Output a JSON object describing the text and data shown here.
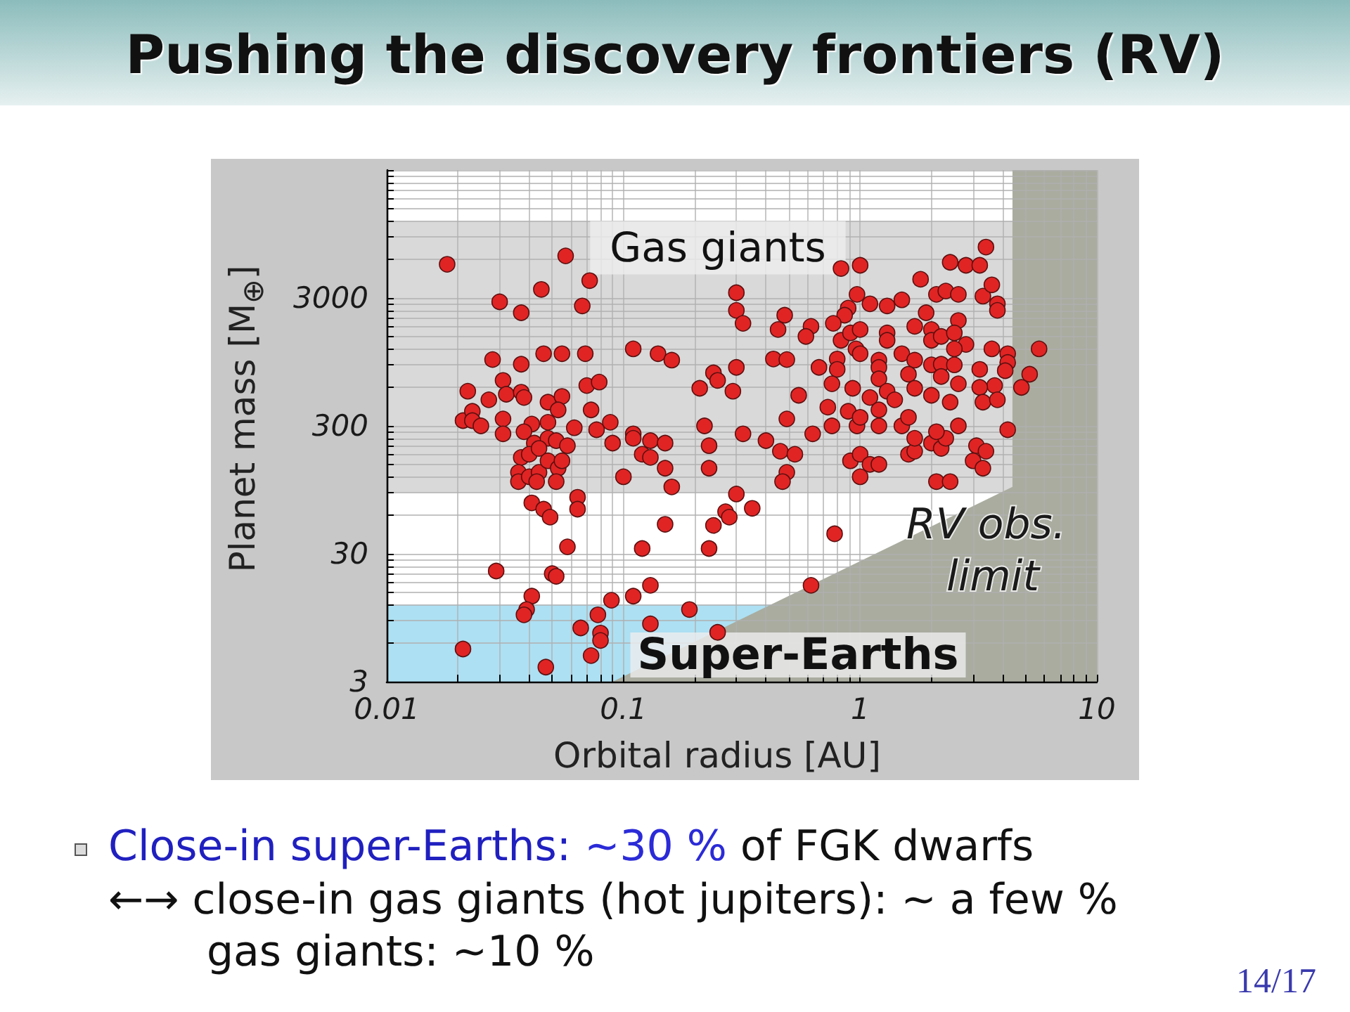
{
  "chart_data": {
    "type": "scatter",
    "title": "Pushing the discovery frontiers (RV)",
    "xlabel": "Orbital radius [AU]",
    "ylabel": "Planet mass [M$_{⊕}$]",
    "annotations": [
      "Close-in super-Earths:",
      "~30 %",
      "of FGK dwarfs",
      "←→ close-in gas giants (hot jupiters): ~ a few %",
      "gas giants: ~10 %",
      "14/17"
    ],
    "log": "xy",
    "grid": true,
    "marker": "circle",
    "xlim": [
      0.01,
      10
    ],
    "ylim": [
      3,
      30000
    ],
    "xticks": [
      0.01,
      {
        "value": 0.02,
        "label": null
      },
      {
        "value": 0.03,
        "label": null
      },
      {
        "value": 0.04,
        "label": null
      },
      {
        "value": 0.05,
        "label": null
      },
      {
        "value": 0.06,
        "label": null
      },
      {
        "value": 0.07,
        "label": null
      },
      {
        "value": 0.08,
        "label": null
      },
      {
        "value": 0.09,
        "label": null
      },
      0.1,
      {
        "value": 0.2,
        "label": null
      },
      {
        "value": 0.3,
        "label": null
      },
      {
        "value": 0.4,
        "label": null
      },
      {
        "value": 0.5,
        "label": null
      },
      {
        "value": 0.6,
        "label": null
      },
      {
        "value": 0.7,
        "label": null
      },
      {
        "value": 0.8,
        "label": null
      },
      {
        "value": 0.9,
        "label": null
      },
      1,
      {
        "value": 2,
        "label": null
      },
      {
        "value": 3,
        "label": null
      },
      {
        "value": 4,
        "label": null
      },
      {
        "value": 5,
        "label": null
      },
      {
        "value": 6,
        "label": null
      },
      {
        "value": 7,
        "label": null
      },
      {
        "value": 8,
        "label": null
      },
      {
        "value": 9,
        "label": null
      },
      10
    ],
    "yticks": [
      3,
      {
        "value": 6,
        "label": null
      },
      {
        "value": 9,
        "label": null
      },
      {
        "value": 12,
        "label": null
      },
      {
        "value": 15,
        "label": null
      },
      {
        "value": 18,
        "label": null
      },
      {
        "value": 21,
        "label": null
      },
      {
        "value": 24,
        "label": null
      },
      {
        "value": 27,
        "label": null
      },
      30,
      {
        "value": 60,
        "label": null
      },
      {
        "value": 90,
        "label": null
      },
      {
        "value": 120,
        "label": null
      },
      {
        "value": 150,
        "label": null
      },
      {
        "value": 180,
        "label": null
      },
      {
        "value": 210,
        "label": null
      },
      {
        "value": 240,
        "label": null
      },
      {
        "value": 270,
        "label": null
      },
      300,
      {
        "value": 600,
        "label": null
      },
      {
        "value": 900,
        "label": null
      },
      {
        "value": 1200,
        "label": null
      },
      {
        "value": 1500,
        "label": null
      },
      {
        "value": 1800,
        "label": null
      },
      {
        "value": 2100,
        "label": null
      },
      {
        "value": 2400,
        "label": null
      },
      {
        "value": 2700,
        "label": null
      },
      3000,
      {
        "value": 6000,
        "label": null
      },
      {
        "value": 9000,
        "label": null
      },
      {
        "value": 12000,
        "label": null
      },
      {
        "value": 15000,
        "label": null
      },
      {
        "value": 18000,
        "label": null
      },
      {
        "value": 21000,
        "label": null
      },
      {
        "value": 24000,
        "label": null
      },
      {
        "value": 27000,
        "label": null
      },
      {
        "value": 30000,
        "label": null
      }
    ],
    "bands": [
      {
        "axis": "y",
        "from": 90,
        "to": 12000,
        "label": "Gas giants",
        "color": "#d9d9d9"
      },
      {
        "axis": "y",
        "from": 3,
        "to": 12,
        "label": "Super-Earths",
        "color": "#ade0f3"
      }
    ],
    "series": [
      {
        "type": "area",
        "name": "RV obs. limit",
        "marker": "none",
        "color": "#a9ac9f",
        "x": [
          0.09,
          4.4,
          4.4,
          10
        ],
        "values": [
          3,
          100,
          30000,
          30000
        ]
      },
      {
        "color": "#e02424",
        "x": [
          0.018,
          0.057,
          0.072,
          0.03,
          0.045,
          0.037,
          0.067,
          0.028,
          0.037,
          0.046,
          0.055,
          0.069,
          0.11,
          0.14,
          0.16,
          0.022,
          0.031,
          0.032,
          0.037,
          0.038,
          0.027,
          0.048,
          0.055,
          0.053,
          0.07,
          0.079,
          0.073,
          0.088,
          0.021,
          0.023,
          0.023,
          0.025,
          0.031,
          0.041,
          0.048,
          0.062,
          0.077,
          0.11,
          0.031,
          0.038,
          0.042,
          0.048,
          0.052,
          0.058,
          0.09,
          0.11,
          0.13,
          0.15,
          0.12,
          0.13,
          0.15,
          0.16,
          0.1,
          0.037,
          0.04,
          0.044,
          0.036,
          0.036,
          0.04,
          0.044,
          0.048,
          0.053,
          0.055,
          0.043,
          0.052,
          0.041,
          0.046,
          0.049,
          0.064,
          0.064,
          0.058,
          0.15,
          0.12,
          0.029,
          0.05,
          0.052,
          0.13,
          0.11,
          0.041,
          0.089,
          0.039,
          0.038,
          0.078,
          0.066,
          0.08,
          0.08,
          0.13,
          0.021,
          0.073,
          0.047,
          0.23,
          0.24,
          0.27,
          0.28,
          0.35,
          0.3,
          0.78,
          0.62,
          0.19,
          0.25,
          0.23,
          0.23,
          0.22,
          0.32,
          0.4,
          0.46,
          0.53,
          0.49,
          0.47,
          0.63,
          0.91,
          1.0,
          1.1,
          1.2,
          1.0,
          1.6,
          1.7,
          1.7,
          2.0,
          2.2,
          2.3,
          2.1,
          2.6,
          3.1,
          3.4,
          3.0,
          3.3,
          2.1,
          2.4,
          4.2,
          0.76,
          0.97,
          1.2,
          1.5,
          0.83,
          1.0,
          3.4,
          2.4,
          2.8,
          3.2,
          1.8,
          2.1,
          2.3,
          2.6,
          3.3,
          3.6,
          3.8,
          3.8,
          0.3,
          0.3,
          0.32,
          0.48,
          0.45,
          0.62,
          0.59,
          0.97,
          1.1,
          1.3,
          1.5,
          0.89,
          0.86,
          0.77,
          0.83,
          0.91,
          1.0,
          1.3,
          1.3,
          1.9,
          1.7,
          2.0,
          2.0,
          2.6,
          2.2,
          2.5,
          2.8,
          2.5,
          3.6,
          4.2,
          4.2,
          4.1,
          5.7,
          5.2,
          4.8,
          0.21,
          0.24,
          0.25,
          0.3,
          0.29,
          0.43,
          0.49,
          0.55,
          0.67,
          0.8,
          0.8,
          0.96,
          1.0,
          1.2,
          1.2,
          1.2,
          1.5,
          1.7,
          1.6,
          2.0,
          2.2,
          2.5,
          2.2,
          2.6,
          3.2,
          3.7,
          3.2,
          3.3,
          3.8,
          0.76,
          0.93,
          1.1,
          1.3,
          1.4,
          1.7,
          2.0,
          2.4,
          0.73,
          0.89,
          1.0,
          1.2,
          1.6,
          0.49
        ],
        "values": [
          5500,
          6400,
          4100,
          2800,
          3500,
          2300,
          2600,
          990,
          910,
          1100,
          1100,
          1100,
          1200,
          1100,
          980,
          560,
          680,
          530,
          550,
          500,
          480,
          460,
          510,
          400,
          620,
          660,
          400,
          320,
          330,
          390,
          330,
          300,
          340,
          310,
          320,
          290,
          280,
          260,
          260,
          270,
          220,
          240,
          230,
          210,
          220,
          240,
          230,
          220,
          180,
          170,
          140,
          100,
          120,
          170,
          180,
          200,
          130,
          110,
          120,
          130,
          160,
          140,
          160,
          110,
          110,
          75,
          67,
          58,
          83,
          67,
          34,
          51,
          33,
          22,
          21,
          20,
          17,
          14,
          14,
          13,
          11,
          10,
          10,
          7.9,
          7.2,
          6.3,
          8.5,
          5.4,
          4.8,
          3.9,
          33,
          50,
          64,
          58,
          68,
          88,
          43,
          17,
          11,
          7.3,
          140,
          210,
          300,
          260,
          230,
          190,
          180,
          130,
          110,
          260,
          160,
          180,
          150,
          150,
          120,
          180,
          190,
          240,
          220,
          200,
          240,
          270,
          300,
          210,
          190,
          160,
          140,
          110,
          110,
          280,
          300,
          300,
          300,
          300,
          5100,
          5400,
          7500,
          5700,
          5400,
          5400,
          4200,
          3200,
          3400,
          3200,
          3100,
          3800,
          2700,
          2400,
          3300,
          2400,
          1900,
          2200,
          1700,
          1800,
          1500,
          3200,
          2700,
          2600,
          2900,
          2500,
          2200,
          1900,
          1400,
          1600,
          1700,
          1600,
          1400,
          2300,
          1800,
          1700,
          1400,
          2000,
          1500,
          1600,
          1300,
          1200,
          1200,
          1100,
          940,
          810,
          1200,
          760,
          600,
          590,
          780,
          680,
          860,
          560,
          1000,
          990,
          520,
          860,
          1000,
          830,
          1200,
          1100,
          980,
          860,
          700,
          1100,
          980,
          760,
          900,
          910,
          900,
          730,
          640,
          830,
          620,
          600,
          460,
          480,
          640,
          590,
          500,
          560,
          480,
          590,
          520,
          460,
          420,
          390,
          350,
          400,
          350,
          340
        ]
      }
    ]
  }
}
